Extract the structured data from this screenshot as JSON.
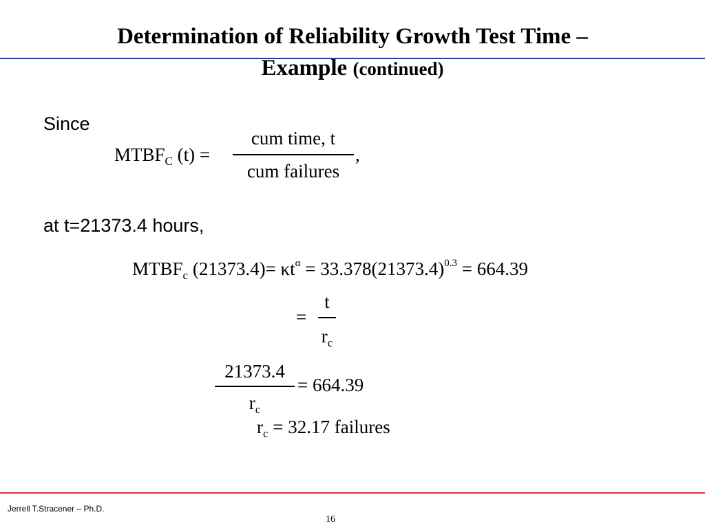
{
  "slide": {
    "title_line1": "Determination of Reliability Growth Test Time –",
    "title_line2_main": "Example",
    "title_line2_suffix": "(continued)",
    "since": "Since",
    "eq1": {
      "lhs_main": "MTBF",
      "lhs_sub": "C",
      "lhs_arg": "(t) =",
      "num": "cum time, t",
      "den": "cum failures",
      "trail": ","
    },
    "at_text": "at t=21373.4 hours,",
    "eq2": {
      "lhs_main": "MTBF",
      "lhs_sub": "c",
      "arg": "(21373.4)= κt",
      "sup_alpha": "α",
      "mid": "= 33.378(21373.4)",
      "sup_exp": "0.3",
      "result": "= 664.39"
    },
    "eq3": {
      "eq": "=",
      "num": "t",
      "den_main": "r",
      "den_sub": "c"
    },
    "eq4": {
      "num": "21373.4",
      "den_main": "r",
      "den_sub": "c",
      "rhs": "= 664.39"
    },
    "eq5": {
      "lhs_main": "r",
      "lhs_sub": "c",
      "rhs": "= 32.17 failures"
    },
    "footer": "Jerrell T.Stracener – Ph.D.",
    "page_number": "16"
  }
}
